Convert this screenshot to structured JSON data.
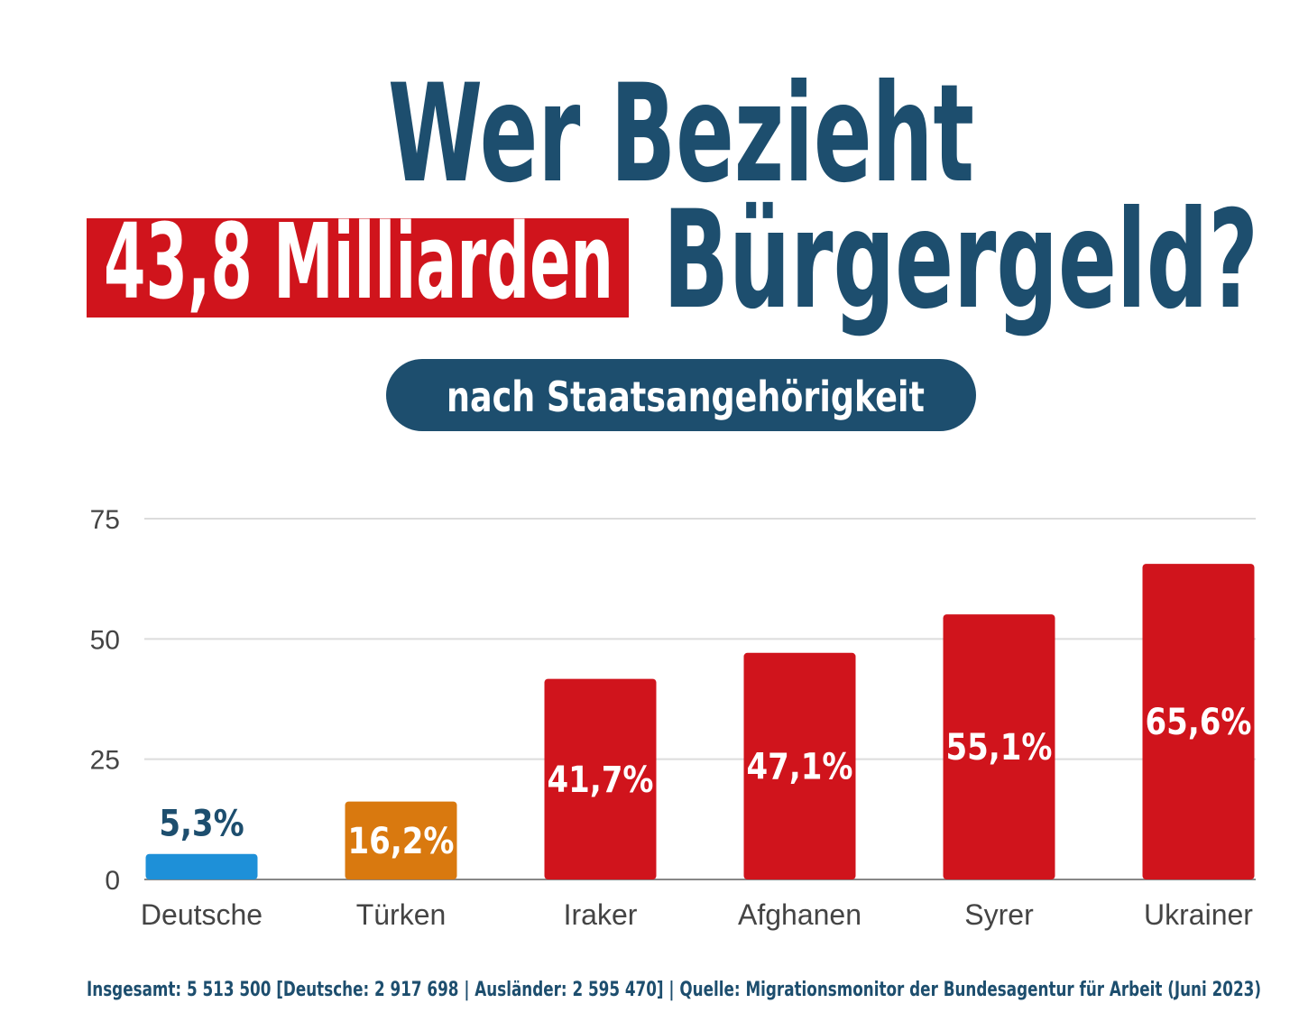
{
  "chart_data": {
    "type": "bar",
    "title": "Wer Bezieht",
    "title_highlight": "43,8 Milliarden",
    "title_end": "Bürgergeld?",
    "subtitle": "nach Staatsangehörigkeit",
    "categories": [
      "Deutsche",
      "Türken",
      "Iraker",
      "Afghanen",
      "Syrer",
      "Ukrainer"
    ],
    "values": [
      5.3,
      16.2,
      41.7,
      47.1,
      55.1,
      65.6
    ],
    "value_labels": [
      "5,3%",
      "16,2%",
      "41,7%",
      "47,1%",
      "55,1%",
      "65,6%"
    ],
    "colors": [
      "#1e90d8",
      "#d9790f",
      "#d0141c",
      "#d0141c",
      "#d0141c",
      "#d0141c"
    ],
    "ylim": [
      0,
      75
    ],
    "yticks": [
      0,
      25,
      50,
      75
    ],
    "grid": true,
    "source": "Insgesamt: 5 513 500 [Deutsche: 2 917 698 | Ausländer: 2 595 470] | Quelle: Migrationsmonitor der Bundesagentur für Arbeit (Juni 2023)"
  }
}
